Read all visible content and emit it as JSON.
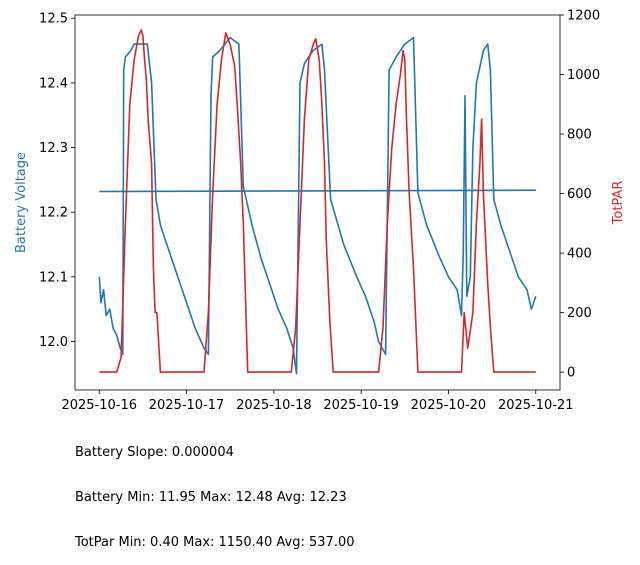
{
  "chart_data": {
    "type": "line",
    "x_ticks": [
      "2025-10-16",
      "2025-10-17",
      "2025-10-18",
      "2025-10-19",
      "2025-10-20",
      "2025-10-21"
    ],
    "x_range": [
      "2025-10-16",
      "2025-10-21"
    ],
    "left_axis": {
      "label": "Battery Voltage",
      "color": "#1f77b4",
      "ylim": [
        11.925,
        12.505
      ],
      "ticks": [
        "12.0",
        "12.1",
        "12.2",
        "12.3",
        "12.4",
        "12.5"
      ]
    },
    "right_axis": {
      "label": "TotPAR",
      "color": "#d62728",
      "ylim": [
        -60,
        1200
      ],
      "ticks": [
        "0",
        "200",
        "400",
        "600",
        "800",
        "1000",
        "1200"
      ]
    },
    "series": [
      {
        "axis": "left",
        "color": "#1f77b4",
        "points": [
          [
            0.0,
            12.1
          ],
          [
            0.02,
            12.06
          ],
          [
            0.05,
            12.08
          ],
          [
            0.08,
            12.04
          ],
          [
            0.12,
            12.05
          ],
          [
            0.16,
            12.02
          ],
          [
            0.2,
            12.01
          ],
          [
            0.24,
            11.99
          ],
          [
            0.27,
            11.98
          ],
          [
            0.28,
            12.42
          ],
          [
            0.3,
            12.44
          ],
          [
            0.36,
            12.45
          ],
          [
            0.4,
            12.46
          ],
          [
            0.55,
            12.46
          ],
          [
            0.6,
            12.4
          ],
          [
            0.65,
            12.22
          ],
          [
            0.7,
            12.18
          ],
          [
            0.8,
            12.14
          ],
          [
            0.9,
            12.1
          ],
          [
            1.0,
            12.06
          ],
          [
            1.1,
            12.02
          ],
          [
            1.2,
            11.99
          ],
          [
            1.25,
            11.98
          ],
          [
            1.28,
            12.38
          ],
          [
            1.3,
            12.44
          ],
          [
            1.38,
            12.45
          ],
          [
            1.5,
            12.47
          ],
          [
            1.6,
            12.46
          ],
          [
            1.65,
            12.24
          ],
          [
            1.75,
            12.18
          ],
          [
            1.85,
            12.13
          ],
          [
            1.95,
            12.09
          ],
          [
            2.05,
            12.05
          ],
          [
            2.15,
            12.02
          ],
          [
            2.22,
            11.99
          ],
          [
            2.26,
            11.95
          ],
          [
            2.3,
            12.4
          ],
          [
            2.35,
            12.43
          ],
          [
            2.45,
            12.45
          ],
          [
            2.55,
            12.46
          ],
          [
            2.58,
            12.42
          ],
          [
            2.65,
            12.22
          ],
          [
            2.8,
            12.15
          ],
          [
            2.95,
            12.1
          ],
          [
            3.05,
            12.07
          ],
          [
            3.15,
            12.03
          ],
          [
            3.2,
            12.0
          ],
          [
            3.28,
            11.98
          ],
          [
            3.32,
            12.42
          ],
          [
            3.4,
            12.44
          ],
          [
            3.5,
            12.46
          ],
          [
            3.6,
            12.47
          ],
          [
            3.65,
            12.23
          ],
          [
            3.75,
            12.18
          ],
          [
            3.9,
            12.13
          ],
          [
            4.0,
            12.1
          ],
          [
            4.1,
            12.08
          ],
          [
            4.15,
            12.04
          ],
          [
            4.17,
            12.14
          ],
          [
            4.19,
            12.38
          ],
          [
            4.21,
            12.07
          ],
          [
            4.25,
            12.1
          ],
          [
            4.28,
            12.3
          ],
          [
            4.32,
            12.4
          ],
          [
            4.4,
            12.45
          ],
          [
            4.45,
            12.46
          ],
          [
            4.48,
            12.42
          ],
          [
            4.52,
            12.22
          ],
          [
            4.6,
            12.18
          ],
          [
            4.7,
            12.14
          ],
          [
            4.8,
            12.1
          ],
          [
            4.9,
            12.08
          ],
          [
            4.95,
            12.05
          ],
          [
            5.0,
            12.07
          ]
        ]
      },
      {
        "axis": "left",
        "color": "#1f77b4",
        "points": [
          [
            0.0,
            12.232
          ],
          [
            5.0,
            12.234
          ]
        ]
      },
      {
        "axis": "right",
        "color": "#d62728",
        "points": [
          [
            0.0,
            0
          ],
          [
            0.2,
            0
          ],
          [
            0.25,
            50
          ],
          [
            0.3,
            500
          ],
          [
            0.35,
            900
          ],
          [
            0.4,
            1050
          ],
          [
            0.45,
            1130
          ],
          [
            0.48,
            1150
          ],
          [
            0.5,
            1130
          ],
          [
            0.52,
            1050
          ],
          [
            0.54,
            980
          ],
          [
            0.56,
            850
          ],
          [
            0.6,
            700
          ],
          [
            0.62,
            350
          ],
          [
            0.64,
            200
          ],
          [
            0.66,
            200
          ],
          [
            0.7,
            0
          ],
          [
            1.2,
            0
          ],
          [
            1.25,
            200
          ],
          [
            1.3,
            600
          ],
          [
            1.35,
            900
          ],
          [
            1.4,
            1050
          ],
          [
            1.45,
            1140
          ],
          [
            1.5,
            1100
          ],
          [
            1.55,
            1030
          ],
          [
            1.58,
            900
          ],
          [
            1.62,
            700
          ],
          [
            1.65,
            500
          ],
          [
            1.7,
            0
          ],
          [
            2.2,
            0
          ],
          [
            2.25,
            150
          ],
          [
            2.3,
            500
          ],
          [
            2.35,
            850
          ],
          [
            2.4,
            1050
          ],
          [
            2.45,
            1100
          ],
          [
            2.48,
            1120
          ],
          [
            2.52,
            1050
          ],
          [
            2.55,
            900
          ],
          [
            2.58,
            700
          ],
          [
            2.6,
            450
          ],
          [
            2.64,
            180
          ],
          [
            2.68,
            0
          ],
          [
            3.2,
            0
          ],
          [
            3.25,
            150
          ],
          [
            3.3,
            500
          ],
          [
            3.35,
            750
          ],
          [
            3.4,
            900
          ],
          [
            3.45,
            1000
          ],
          [
            3.48,
            1080
          ],
          [
            3.5,
            1050
          ],
          [
            3.52,
            850
          ],
          [
            3.55,
            600
          ],
          [
            3.6,
            350
          ],
          [
            3.65,
            0
          ],
          [
            4.15,
            0
          ],
          [
            4.18,
            200
          ],
          [
            4.22,
            80
          ],
          [
            4.28,
            200
          ],
          [
            4.32,
            500
          ],
          [
            4.36,
            700
          ],
          [
            4.38,
            850
          ],
          [
            4.4,
            600
          ],
          [
            4.45,
            300
          ],
          [
            4.48,
            150
          ],
          [
            4.52,
            0
          ],
          [
            5.0,
            0
          ]
        ]
      }
    ],
    "stats": [
      "Battery Slope: 0.000004",
      "Battery Min: 11.95 Max: 12.48 Avg: 12.23",
      "TotPar Min: 0.40 Max: 1150.40 Avg: 537.00"
    ]
  }
}
